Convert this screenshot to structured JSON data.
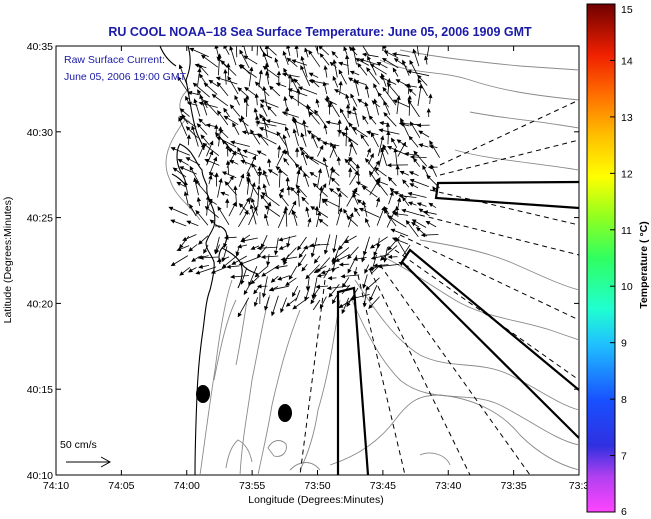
{
  "title": "RU COOL  NOAA–18  Sea Surface Temperature:  June 05, 2006 1909 GMT",
  "current_label_line1": "Raw Surface Current:",
  "current_label_line2": "June 05, 2006 19:00 GMT",
  "scale_label": "50 cm/s",
  "x_label": "Longitude (Degrees:Minutes)",
  "y_label": "Latitude (Degrees:Minutes)",
  "x_ticks": [
    "74:10",
    "74:05",
    "74:00",
    "73:55",
    "73:50",
    "73:45",
    "73:40",
    "73:35",
    "73:3"
  ],
  "y_ticks": [
    "40:35",
    "40:30",
    "40:25",
    "40:20",
    "40:15",
    "40:10"
  ],
  "colorbar": {
    "label": "Temperature ( °C)",
    "ticks": [
      "15",
      "14",
      "13",
      "12",
      "11",
      "10",
      "9",
      "8",
      "7",
      "6"
    ],
    "range": [
      6,
      15
    ],
    "colors": [
      "#ff44ff",
      "#b040f0",
      "#2020e0",
      "#1850ff",
      "#20c0ff",
      "#20ffd0",
      "#30ff60",
      "#90ff20",
      "#ffff00",
      "#ffc000",
      "#ff7000",
      "#f02000",
      "#b00000",
      "#700000"
    ]
  }
}
